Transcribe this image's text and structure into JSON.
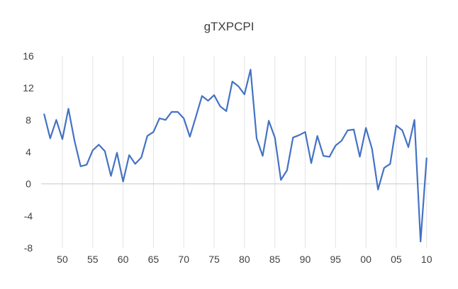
{
  "chart_data": {
    "type": "line",
    "title": "gTXPCPI",
    "xlabel": "",
    "ylabel": "",
    "x_start": 1947,
    "x_end": 2010,
    "x_tick_years": [
      1950,
      1955,
      1960,
      1965,
      1970,
      1975,
      1980,
      1985,
      1990,
      1995,
      2000,
      2005,
      2010
    ],
    "x_tick_labels": [
      "50",
      "55",
      "60",
      "65",
      "70",
      "75",
      "80",
      "85",
      "90",
      "95",
      "00",
      "05",
      "10"
    ],
    "y_ticks": [
      -8,
      -4,
      0,
      4,
      8,
      12,
      16
    ],
    "y_tick_labels": [
      "-8",
      "-4",
      "0",
      "4",
      "8",
      "12",
      "16"
    ],
    "ylim": [
      -8,
      16
    ],
    "grid": "vertical",
    "line_color": "#4472c4",
    "series": [
      {
        "name": "",
        "x": [
          1947,
          1948,
          1949,
          1950,
          1951,
          1952,
          1953,
          1954,
          1955,
          1956,
          1957,
          1958,
          1959,
          1960,
          1961,
          1962,
          1963,
          1964,
          1965,
          1966,
          1967,
          1968,
          1969,
          1970,
          1971,
          1972,
          1973,
          1974,
          1975,
          1976,
          1977,
          1978,
          1979,
          1980,
          1981,
          1982,
          1983,
          1984,
          1985,
          1986,
          1987,
          1988,
          1989,
          1990,
          1991,
          1992,
          1993,
          1994,
          1995,
          1996,
          1997,
          1998,
          1999,
          2000,
          2001,
          2002,
          2003,
          2004,
          2005,
          2006,
          2007,
          2008,
          2009,
          2010
        ],
        "values": [
          8.7,
          5.7,
          8.0,
          5.6,
          9.4,
          5.4,
          2.2,
          2.4,
          4.2,
          4.9,
          4.1,
          1.0,
          3.9,
          0.3,
          3.6,
          2.5,
          3.3,
          6.0,
          6.5,
          8.2,
          8.0,
          9.0,
          9.0,
          8.2,
          5.9,
          8.4,
          11.0,
          10.4,
          11.1,
          9.7,
          9.1,
          12.8,
          12.2,
          11.2,
          14.3,
          5.7,
          3.5,
          7.9,
          5.8,
          0.5,
          1.7,
          5.8,
          6.1,
          6.5,
          2.6,
          6.0,
          3.5,
          3.4,
          4.8,
          5.4,
          6.7,
          6.8,
          3.4,
          7.0,
          4.4,
          -0.7,
          2.0,
          2.5,
          7.3,
          6.7,
          4.6,
          8.0,
          -7.2,
          3.2
        ]
      }
    ]
  }
}
